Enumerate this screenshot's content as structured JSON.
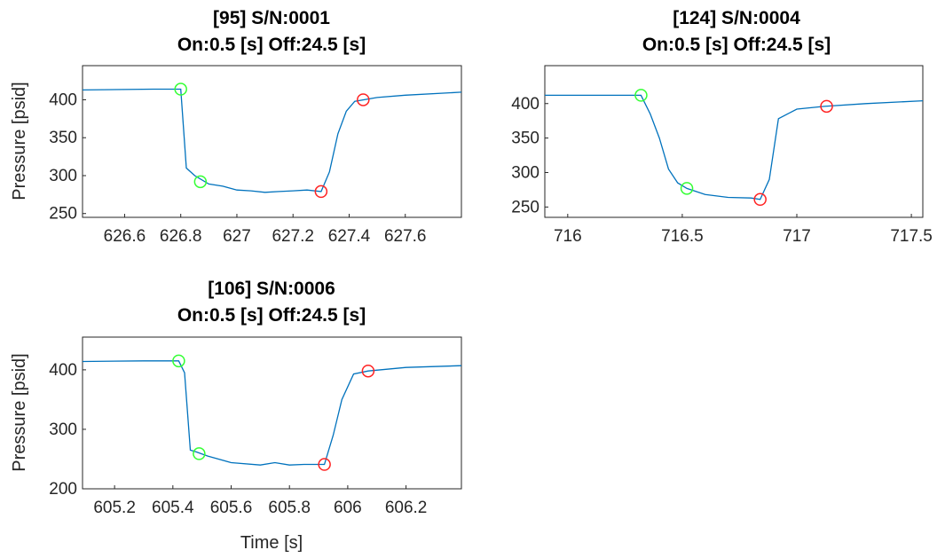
{
  "colors": {
    "trace": "#0072BD",
    "start_marker": "#33FF33",
    "end_marker": "#FF2222",
    "axes": "#262626"
  },
  "chart_data": [
    {
      "type": "line",
      "title_line1": "[95] S/N:0001",
      "title_line2": "On:0.5 [s] Off:24.5 [s]",
      "xlabel": "",
      "ylabel": "Pressure [psid]",
      "xlim": [
        626.45,
        627.8
      ],
      "ylim": [
        245,
        445
      ],
      "xticks": [
        626.6,
        626.8,
        627,
        627.2,
        627.4,
        627.6
      ],
      "xtick_labels": [
        "626.6",
        "626.8",
        "627",
        "627.2",
        "627.4",
        "627.6"
      ],
      "yticks": [
        250,
        300,
        350,
        400
      ],
      "ytick_labels": [
        "250",
        "300",
        "350",
        "400"
      ],
      "x": [
        626.45,
        626.7,
        626.8,
        626.82,
        626.85,
        626.9,
        626.95,
        627.0,
        627.05,
        627.1,
        627.15,
        627.2,
        627.25,
        627.3,
        627.33,
        627.36,
        627.39,
        627.42,
        627.5,
        627.6,
        627.8
      ],
      "y": [
        413,
        414,
        414,
        310,
        300,
        289,
        286,
        281,
        280,
        278,
        279,
        280,
        281,
        279,
        305,
        355,
        385,
        398,
        403,
        406,
        410
      ],
      "markers": [
        {
          "x": 626.8,
          "y": 414,
          "role": "start"
        },
        {
          "x": 626.87,
          "y": 292,
          "role": "start"
        },
        {
          "x": 627.3,
          "y": 279,
          "role": "end"
        },
        {
          "x": 627.45,
          "y": 400,
          "role": "end"
        }
      ]
    },
    {
      "type": "line",
      "title_line1": "[124] S/N:0004",
      "title_line2": "On:0.5 [s] Off:24.5 [s]",
      "xlabel": "",
      "ylabel": "",
      "xlim": [
        715.9,
        717.55
      ],
      "ylim": [
        235,
        455
      ],
      "xticks": [
        716,
        716.5,
        717,
        717.5
      ],
      "xtick_labels": [
        "716",
        "716.5",
        "717",
        "717.5"
      ],
      "yticks": [
        250,
        300,
        350,
        400
      ],
      "ytick_labels": [
        "250",
        "300",
        "350",
        "400"
      ],
      "x": [
        715.9,
        716.1,
        716.32,
        716.36,
        716.4,
        716.44,
        716.48,
        716.52,
        716.6,
        716.7,
        716.8,
        716.84,
        716.88,
        716.92,
        717.0,
        717.12,
        717.3,
        717.55
      ],
      "y": [
        412,
        412,
        412,
        385,
        350,
        305,
        285,
        277,
        268,
        264,
        263,
        261,
        290,
        378,
        392,
        396,
        400,
        404
      ],
      "markers": [
        {
          "x": 716.32,
          "y": 412,
          "role": "start"
        },
        {
          "x": 716.52,
          "y": 277,
          "role": "start"
        },
        {
          "x": 716.84,
          "y": 261,
          "role": "end"
        },
        {
          "x": 717.13,
          "y": 396,
          "role": "end"
        }
      ]
    },
    {
      "type": "line",
      "title_line1": "[106] S/N:0006",
      "title_line2": "On:0.5 [s] Off:24.5 [s]",
      "xlabel": "Time [s]",
      "ylabel": "Pressure [psid]",
      "xlim": [
        605.09,
        606.39
      ],
      "ylim": [
        200,
        455
      ],
      "xticks": [
        605.2,
        605.4,
        605.6,
        605.8,
        606,
        606.2
      ],
      "xtick_labels": [
        "605.2",
        "605.4",
        "605.6",
        "605.8",
        "606",
        "606.2"
      ],
      "yticks": [
        200,
        300,
        400
      ],
      "ytick_labels": [
        "200",
        "300",
        "400"
      ],
      "x": [
        605.09,
        605.3,
        605.42,
        605.44,
        605.46,
        605.48,
        605.52,
        605.6,
        605.7,
        605.75,
        605.8,
        605.85,
        605.92,
        605.95,
        605.98,
        606.02,
        606.07,
        606.2,
        606.39
      ],
      "y": [
        414,
        415,
        415,
        395,
        265,
        262,
        255,
        244,
        240,
        244,
        240,
        241,
        241,
        290,
        350,
        393,
        398,
        404,
        407
      ],
      "markers": [
        {
          "x": 605.42,
          "y": 415,
          "role": "start"
        },
        {
          "x": 605.49,
          "y": 259,
          "role": "start"
        },
        {
          "x": 605.92,
          "y": 241,
          "role": "end"
        },
        {
          "x": 606.07,
          "y": 398,
          "role": "end"
        }
      ]
    }
  ]
}
